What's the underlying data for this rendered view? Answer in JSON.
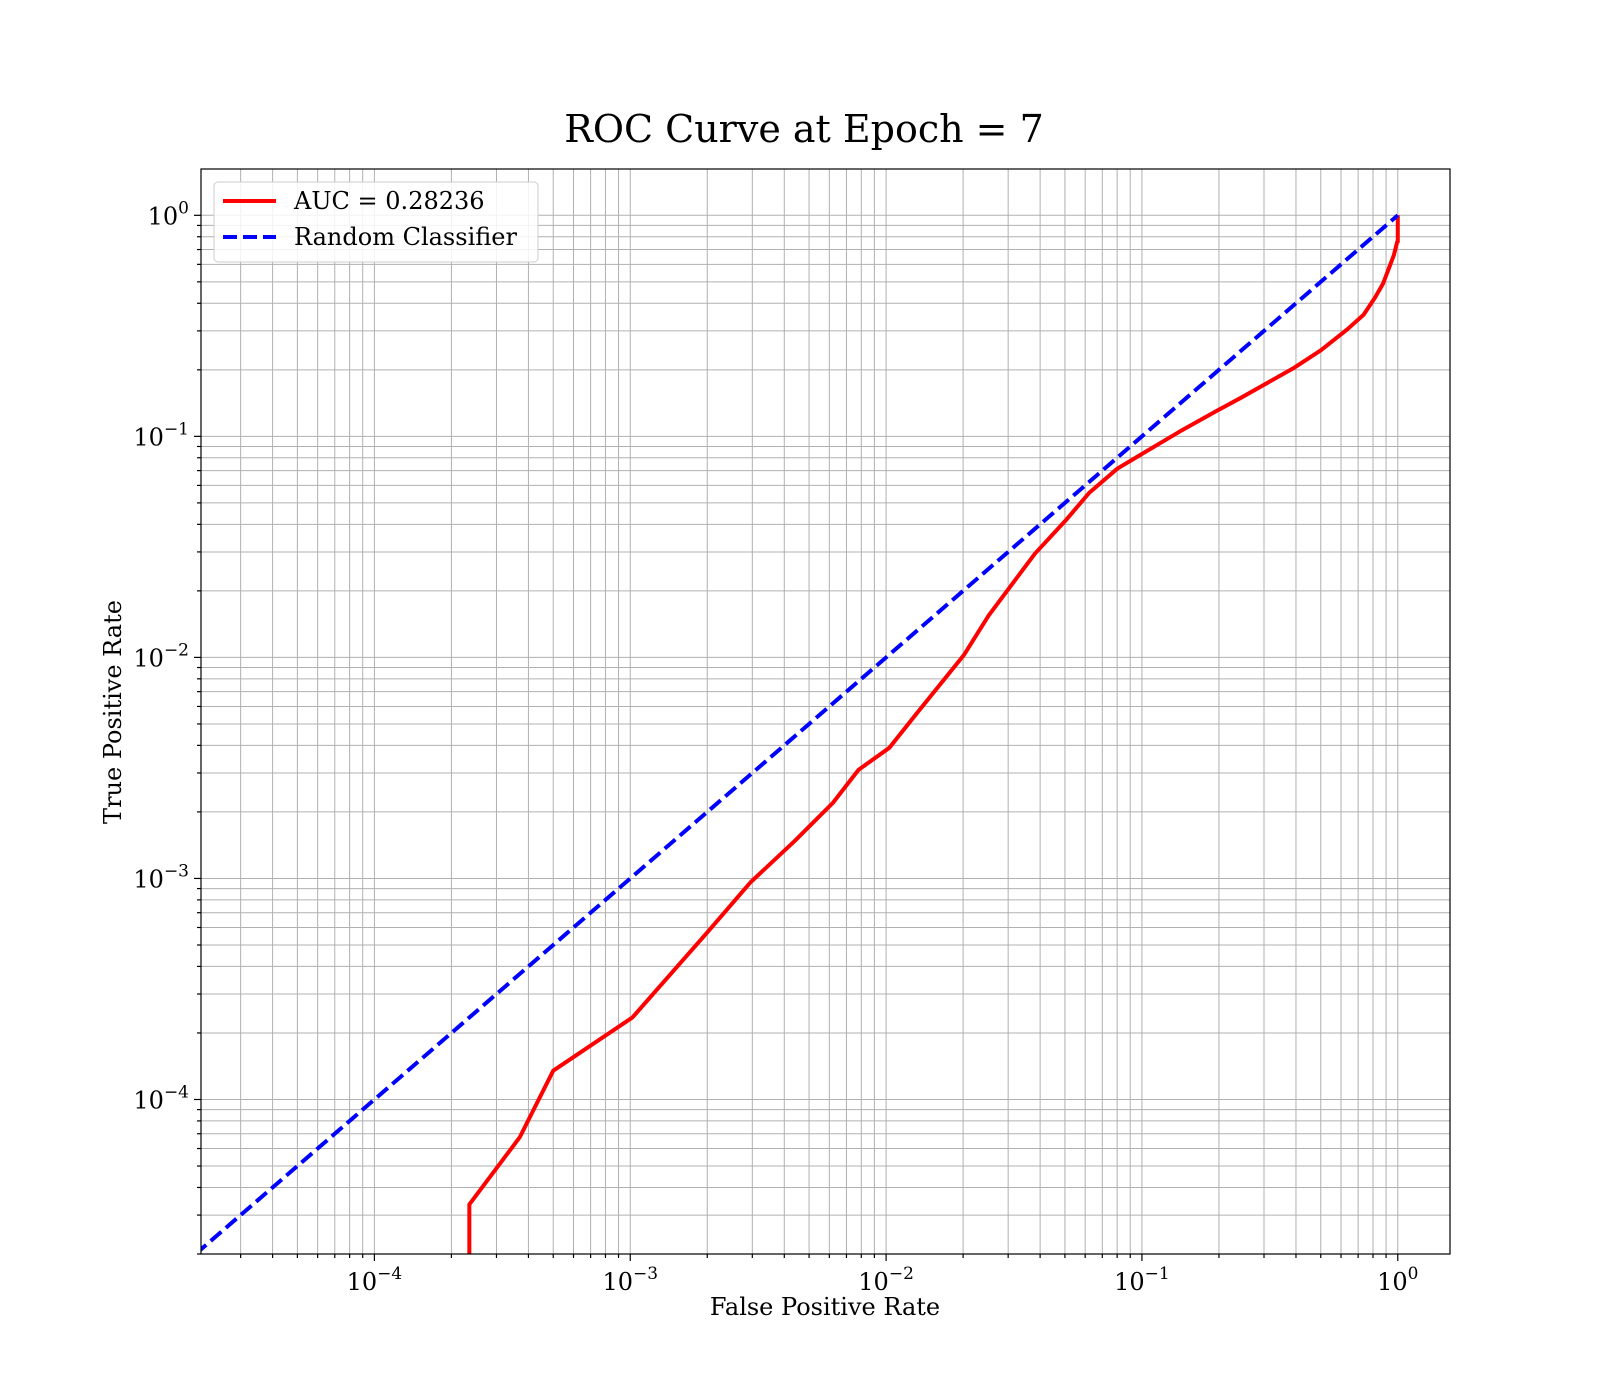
{
  "chart_data": {
    "type": "line",
    "title": "ROC Curve at Epoch = 7",
    "xlabel": "False Positive Rate",
    "ylabel": "True Positive Rate",
    "xscale": "log",
    "yscale": "log",
    "xlim": [
      2.1e-05,
      1.6
    ],
    "ylim": [
      2e-05,
      1.62
    ],
    "grid": true,
    "legend_position": "top-left",
    "x_ticks": [
      {
        "value": 0.0001,
        "base": "10",
        "exp": "−4"
      },
      {
        "value": 0.001,
        "base": "10",
        "exp": "−3"
      },
      {
        "value": 0.01,
        "base": "10",
        "exp": "−2"
      },
      {
        "value": 0.1,
        "base": "10",
        "exp": "−1"
      },
      {
        "value": 1,
        "base": "10",
        "exp": "0"
      }
    ],
    "y_ticks": [
      {
        "value": 0.0001,
        "base": "10",
        "exp": "−4"
      },
      {
        "value": 0.001,
        "base": "10",
        "exp": "−3"
      },
      {
        "value": 0.01,
        "base": "10",
        "exp": "−2"
      },
      {
        "value": 0.1,
        "base": "10",
        "exp": "−1"
      },
      {
        "value": 1,
        "base": "10",
        "exp": "0"
      }
    ],
    "series": [
      {
        "name": "AUC = 0.28236",
        "color": "#ff0000",
        "style": "solid",
        "x": [
          0.000235,
          0.000235,
          0.00037,
          0.0005,
          0.00102,
          0.00135,
          0.002,
          0.00295,
          0.0044,
          0.0062,
          0.0078,
          0.0103,
          0.0132,
          0.0202,
          0.0252,
          0.0382,
          0.0502,
          0.0622,
          0.0802,
          0.1402,
          0.1952,
          0.2452,
          0.3952,
          0.5002,
          0.6352,
          0.7352,
          0.8152,
          0.8752,
          0.9252,
          0.9652,
          0.9952,
          1.0,
          1.0
        ],
        "y": [
          2e-05,
          3.35e-05,
          6.75e-05,
          0.000135,
          0.000235,
          0.00034,
          0.00057,
          0.00096,
          0.00148,
          0.0022,
          0.0031,
          0.0039,
          0.0056,
          0.0103,
          0.0155,
          0.0295,
          0.0415,
          0.0555,
          0.0715,
          0.105,
          0.13,
          0.15,
          0.205,
          0.245,
          0.305,
          0.355,
          0.425,
          0.49,
          0.58,
          0.66,
          0.76,
          0.76,
          1.0
        ]
      },
      {
        "name": "Random Classifier",
        "color": "#0000ff",
        "style": "dashed",
        "x": [
          2e-05,
          1.0
        ],
        "y": [
          2e-05,
          1.0
        ]
      }
    ]
  }
}
